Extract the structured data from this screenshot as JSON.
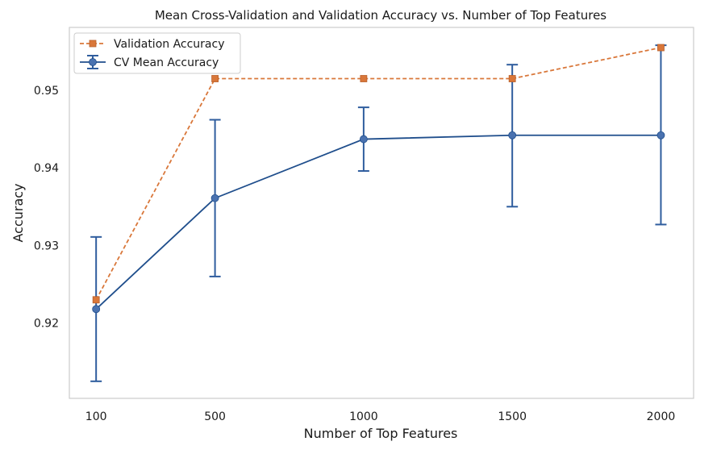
{
  "chart_data": {
    "type": "line",
    "title": "Mean Cross-Validation and Validation Accuracy vs. Number of Top Features",
    "xlabel": "Number of Top Features",
    "ylabel": "Accuracy",
    "x": [
      100,
      500,
      1000,
      1500,
      2000
    ],
    "x_tick_labels": [
      "100",
      "500",
      "1000",
      "1500",
      "2000"
    ],
    "y_ticks": [
      0.92,
      0.93,
      0.94,
      0.95
    ],
    "y_tick_labels": [
      "0.92",
      "0.93",
      "0.94",
      "0.95"
    ],
    "xlim": [
      10,
      2110
    ],
    "ylim": [
      0.9103,
      0.9581
    ],
    "grid": false,
    "legend_position": "upper-left",
    "series": [
      {
        "name": "Validation Accuracy",
        "values": [
          0.923,
          0.9515,
          0.9515,
          0.9515,
          0.9555
        ],
        "color": "#d9773a",
        "marker": "square",
        "line_style": "dashed"
      },
      {
        "name": "CV Mean Accuracy",
        "values": [
          0.9218,
          0.9361,
          0.9437,
          0.9442,
          0.9442
        ],
        "error_low": [
          0.9125,
          0.926,
          0.9396,
          0.935,
          0.9327
        ],
        "error_high": [
          0.9311,
          0.9462,
          0.9478,
          0.9533,
          0.9558
        ],
        "color": "#1f4e8c",
        "marker_color": "#4a72b0",
        "marker": "circle",
        "line_style": "solid"
      }
    ]
  }
}
